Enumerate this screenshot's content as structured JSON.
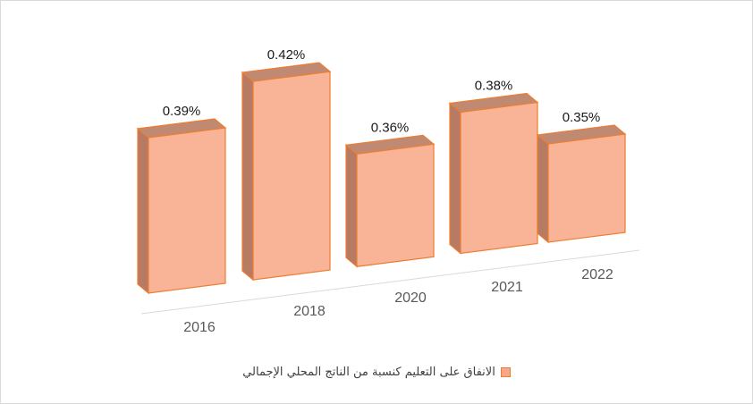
{
  "chart_data": {
    "type": "bar",
    "categories": [
      "2016",
      "2018",
      "2020",
      "2021",
      "2022"
    ],
    "series": [
      {
        "name": "الانفاق على التعليم كنسبة من الناتج المحلي الإجمالي",
        "values": [
          0.39,
          0.42,
          0.36,
          0.38,
          0.35
        ],
        "labels": [
          "0.39%",
          "0.42%",
          "0.36%",
          "0.38%",
          "0.35%"
        ]
      }
    ],
    "title": "",
    "xlabel": "",
    "ylabel": "",
    "legend_position": "bottom",
    "grid": false,
    "style": "3d-column"
  },
  "colors": {
    "bar_front": "#f9b396",
    "bar_side": "#b77a62",
    "bar_top": "#c08a72",
    "bar_outline": "#ed7d31",
    "floor_line": "#d9d9d9"
  }
}
